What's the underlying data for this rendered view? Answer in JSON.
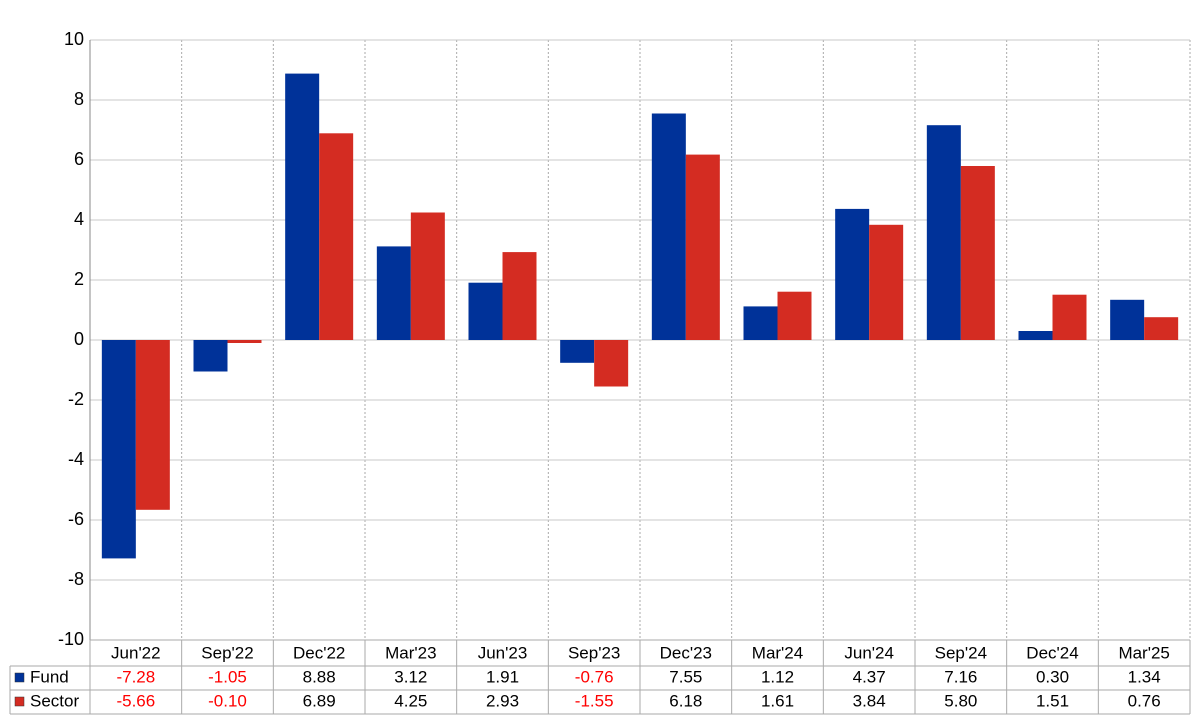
{
  "chart_data": {
    "type": "bar",
    "categories": [
      "Jun'22",
      "Sep'22",
      "Dec'22",
      "Mar'23",
      "Jun'23",
      "Sep'23",
      "Dec'23",
      "Mar'24",
      "Jun'24",
      "Sep'24",
      "Dec'24",
      "Mar'25"
    ],
    "series": [
      {
        "name": "Fund",
        "color": "#003299",
        "values": [
          -7.28,
          -1.05,
          8.88,
          3.12,
          1.91,
          -0.76,
          7.55,
          1.12,
          4.37,
          7.16,
          0.3,
          1.34
        ],
        "value_labels": [
          "-7.28",
          "-1.05",
          "8.88",
          "3.12",
          "1.91",
          "-0.76",
          "7.55",
          "1.12",
          "4.37",
          "7.16",
          "0.30",
          "1.34"
        ]
      },
      {
        "name": "Sector",
        "color": "#d42c22",
        "values": [
          -5.66,
          -0.1,
          6.89,
          4.25,
          2.93,
          -1.55,
          6.18,
          1.61,
          3.84,
          5.8,
          1.51,
          0.76
        ],
        "value_labels": [
          "-5.66",
          "-0.10",
          "6.89",
          "4.25",
          "2.93",
          "-1.55",
          "6.18",
          "1.61",
          "3.84",
          "5.80",
          "1.51",
          "0.76"
        ]
      }
    ],
    "ylim": [
      -10,
      10
    ],
    "yticks": [
      -10,
      -8,
      -6,
      -4,
      -2,
      0,
      2,
      4,
      6,
      8,
      10
    ],
    "grid": true,
    "negative_label_color": "#ff0000"
  }
}
